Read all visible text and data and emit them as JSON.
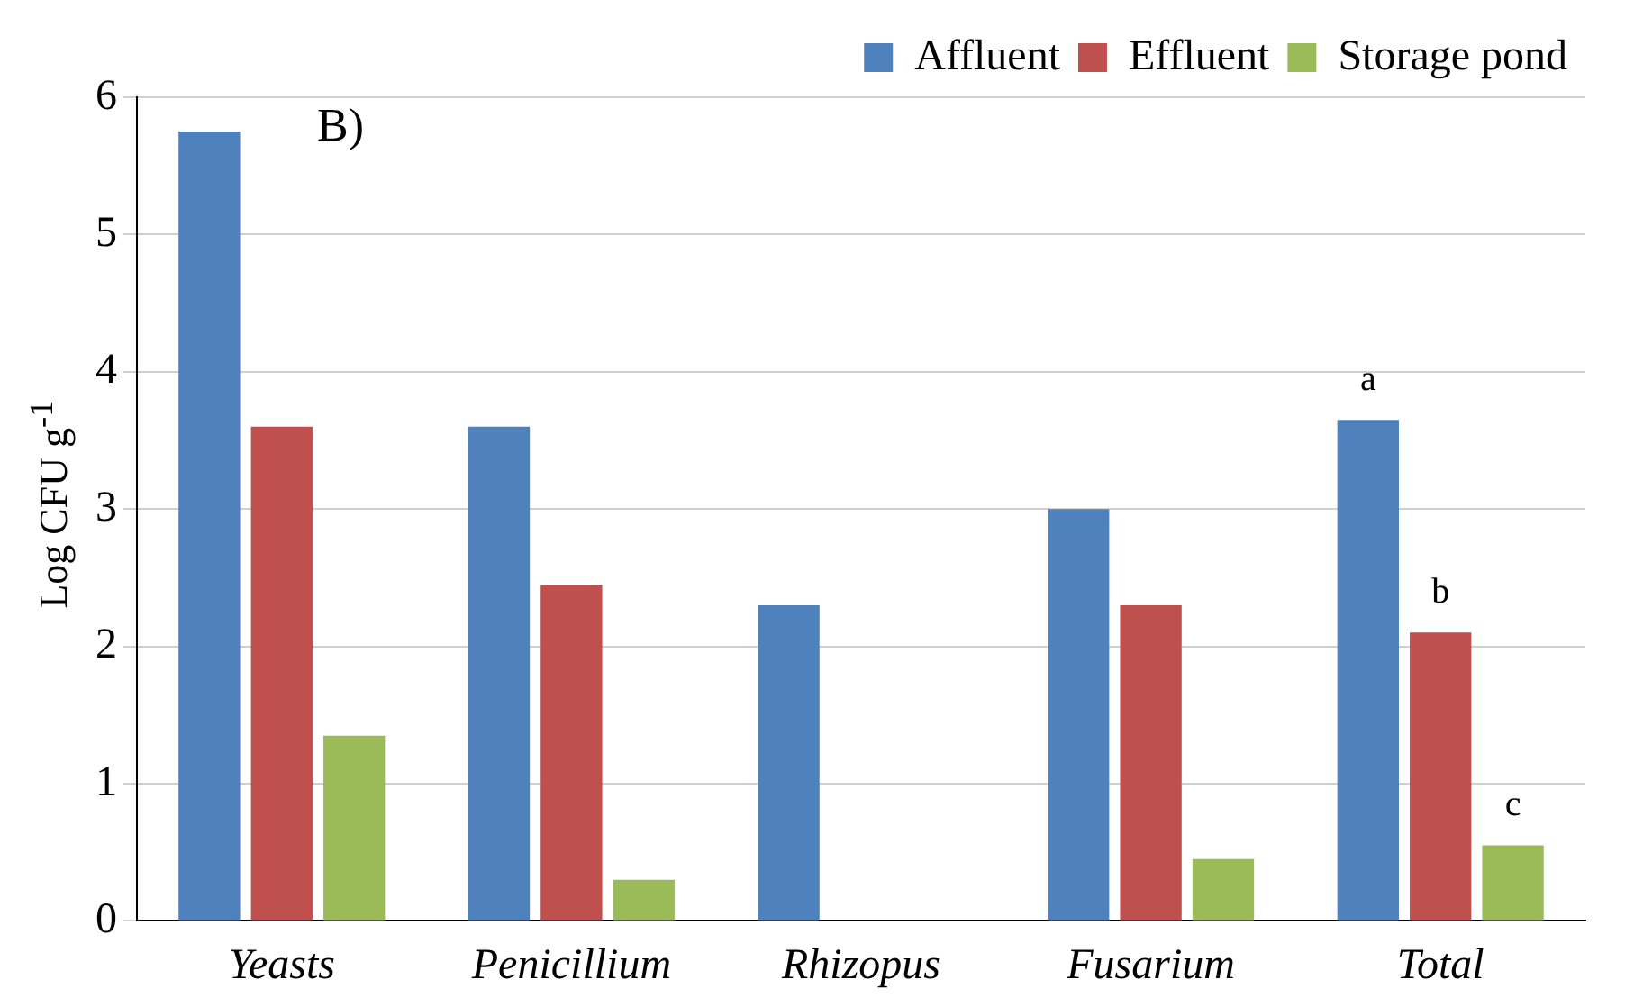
{
  "chart_data": {
    "type": "bar",
    "ylabel": "Log CFU g$^{-1}$",
    "categories": [
      "Yeasts",
      "Penicillium",
      "Rhizopus",
      "Fusarium",
      "Total"
    ],
    "series": [
      {
        "name": "Affluent",
        "color": "#4f81bd",
        "values": [
          5.75,
          3.6,
          2.3,
          3.0,
          3.65
        ]
      },
      {
        "name": "Effluent",
        "color": "#c0504d",
        "values": [
          3.6,
          2.45,
          0,
          2.3,
          2.1
        ]
      },
      {
        "name": "Storage pond",
        "color": "#9bbb59",
        "values": [
          1.35,
          0.3,
          0,
          0.45,
          0.55
        ]
      }
    ],
    "ylim": [
      0,
      6
    ],
    "yticks": [
      0,
      1,
      2,
      3,
      4,
      5,
      6
    ],
    "grid": "y",
    "legend": "top right",
    "annotations": [
      "B)",
      "a",
      "b",
      "c"
    ]
  }
}
